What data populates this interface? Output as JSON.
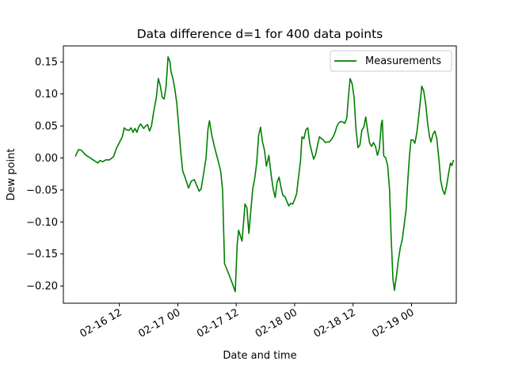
{
  "chart_data": {
    "type": "line",
    "title": "Data difference d=1 for 400 data points",
    "xlabel": "Date and time",
    "ylabel": "Dew point",
    "x_ticks": [
      {
        "label": "02-16 12",
        "hours": 12
      },
      {
        "label": "02-17 00",
        "hours": 24
      },
      {
        "label": "02-17 12",
        "hours": 36
      },
      {
        "label": "02-18 00",
        "hours": 48
      },
      {
        "label": "02-18 12",
        "hours": 60
      },
      {
        "label": "02-19 00",
        "hours": 72
      }
    ],
    "y_ticks": [
      0.15,
      0.1,
      0.05,
      0.0,
      -0.05,
      -0.1,
      -0.15,
      -0.2
    ],
    "y_tick_labels": [
      "0.15",
      "0.10",
      "0.05",
      "0.00",
      "−0.05",
      "−0.10",
      "−0.15",
      "−0.20"
    ],
    "xlim": [
      0.5,
      81.2
    ],
    "ylim": [
      -0.227,
      0.175
    ],
    "legend": "top-right",
    "series": [
      {
        "name": "Measurements",
        "color": "#008000",
        "points": [
          [
            3.0,
            0.003
          ],
          [
            3.6,
            0.013
          ],
          [
            4.2,
            0.012
          ],
          [
            5.0,
            0.005
          ],
          [
            6.0,
            0.0
          ],
          [
            7.0,
            -0.005
          ],
          [
            7.6,
            -0.008
          ],
          [
            8.0,
            -0.004
          ],
          [
            8.6,
            -0.006
          ],
          [
            9.2,
            -0.003
          ],
          [
            10.0,
            -0.003
          ],
          [
            10.8,
            0.002
          ],
          [
            11.4,
            0.015
          ],
          [
            12.0,
            0.024
          ],
          [
            12.6,
            0.033
          ],
          [
            13.0,
            0.047
          ],
          [
            13.4,
            0.044
          ],
          [
            14.0,
            0.043
          ],
          [
            14.4,
            0.047
          ],
          [
            14.8,
            0.04
          ],
          [
            15.2,
            0.046
          ],
          [
            15.6,
            0.04
          ],
          [
            16.0,
            0.049
          ],
          [
            16.4,
            0.053
          ],
          [
            17.0,
            0.046
          ],
          [
            17.4,
            0.05
          ],
          [
            17.8,
            0.052
          ],
          [
            18.2,
            0.042
          ],
          [
            18.6,
            0.05
          ],
          [
            19.0,
            0.07
          ],
          [
            19.6,
            0.095
          ],
          [
            20.0,
            0.124
          ],
          [
            20.4,
            0.113
          ],
          [
            20.8,
            0.095
          ],
          [
            21.2,
            0.092
          ],
          [
            21.6,
            0.112
          ],
          [
            22.0,
            0.158
          ],
          [
            22.4,
            0.15
          ],
          [
            22.6,
            0.135
          ],
          [
            23.0,
            0.124
          ],
          [
            23.4,
            0.107
          ],
          [
            23.8,
            0.085
          ],
          [
            24.2,
            0.048
          ],
          [
            24.6,
            0.01
          ],
          [
            25.0,
            -0.02
          ],
          [
            25.6,
            -0.033
          ],
          [
            26.2,
            -0.047
          ],
          [
            26.8,
            -0.036
          ],
          [
            27.4,
            -0.034
          ],
          [
            28.0,
            -0.045
          ],
          [
            28.4,
            -0.052
          ],
          [
            28.8,
            -0.048
          ],
          [
            29.4,
            -0.02
          ],
          [
            29.8,
            0.0
          ],
          [
            30.2,
            0.045
          ],
          [
            30.5,
            0.058
          ],
          [
            31.0,
            0.035
          ],
          [
            31.6,
            0.015
          ],
          [
            32.2,
            -0.002
          ],
          [
            32.8,
            -0.02
          ],
          [
            33.2,
            -0.05
          ],
          [
            33.6,
            -0.165
          ],
          [
            34.4,
            -0.18
          ],
          [
            35.2,
            -0.196
          ],
          [
            35.8,
            -0.209
          ],
          [
            36.2,
            -0.135
          ],
          [
            36.5,
            -0.113
          ],
          [
            37.2,
            -0.13
          ],
          [
            37.8,
            -0.072
          ],
          [
            38.2,
            -0.078
          ],
          [
            38.6,
            -0.118
          ],
          [
            39.0,
            -0.082
          ],
          [
            39.4,
            -0.048
          ],
          [
            39.8,
            -0.032
          ],
          [
            40.2,
            -0.008
          ],
          [
            40.6,
            0.035
          ],
          [
            41.0,
            0.048
          ],
          [
            41.4,
            0.025
          ],
          [
            41.8,
            0.012
          ],
          [
            42.2,
            -0.013
          ],
          [
            42.7,
            0.004
          ],
          [
            43.2,
            -0.028
          ],
          [
            43.6,
            -0.049
          ],
          [
            44.0,
            -0.062
          ],
          [
            44.4,
            -0.038
          ],
          [
            44.8,
            -0.03
          ],
          [
            45.2,
            -0.046
          ],
          [
            45.6,
            -0.059
          ],
          [
            46.0,
            -0.06
          ],
          [
            46.4,
            -0.068
          ],
          [
            46.8,
            -0.075
          ],
          [
            47.2,
            -0.071
          ],
          [
            47.6,
            -0.072
          ],
          [
            48.0,
            -0.065
          ],
          [
            48.4,
            -0.056
          ],
          [
            48.8,
            -0.03
          ],
          [
            49.2,
            -0.005
          ],
          [
            49.5,
            0.033
          ],
          [
            49.9,
            0.03
          ],
          [
            50.3,
            0.044
          ],
          [
            50.7,
            0.047
          ],
          [
            51.1,
            0.023
          ],
          [
            51.5,
            0.01
          ],
          [
            51.9,
            -0.002
          ],
          [
            52.3,
            0.005
          ],
          [
            52.7,
            0.02
          ],
          [
            53.1,
            0.033
          ],
          [
            53.5,
            0.03
          ],
          [
            53.9,
            0.028
          ],
          [
            54.3,
            0.024
          ],
          [
            54.7,
            0.025
          ],
          [
            55.1,
            0.025
          ],
          [
            55.5,
            0.028
          ],
          [
            55.9,
            0.033
          ],
          [
            56.3,
            0.04
          ],
          [
            56.7,
            0.05
          ],
          [
            57.1,
            0.055
          ],
          [
            57.5,
            0.057
          ],
          [
            57.9,
            0.056
          ],
          [
            58.3,
            0.054
          ],
          [
            58.7,
            0.062
          ],
          [
            59.1,
            0.1
          ],
          [
            59.4,
            0.124
          ],
          [
            59.8,
            0.116
          ],
          [
            60.2,
            0.095
          ],
          [
            60.6,
            0.045
          ],
          [
            61.0,
            0.016
          ],
          [
            61.4,
            0.02
          ],
          [
            61.8,
            0.043
          ],
          [
            62.2,
            0.048
          ],
          [
            62.6,
            0.064
          ],
          [
            63.0,
            0.042
          ],
          [
            63.4,
            0.023
          ],
          [
            63.8,
            0.018
          ],
          [
            64.2,
            0.024
          ],
          [
            64.6,
            0.018
          ],
          [
            65.0,
            0.004
          ],
          [
            65.4,
            0.015
          ],
          [
            65.8,
            0.053
          ],
          [
            66.0,
            0.059
          ],
          [
            66.3,
            0.003
          ],
          [
            66.7,
            0.0
          ],
          [
            67.1,
            -0.012
          ],
          [
            67.5,
            -0.05
          ],
          [
            67.8,
            -0.12
          ],
          [
            68.2,
            -0.19
          ],
          [
            68.5,
            -0.207
          ],
          [
            68.9,
            -0.185
          ],
          [
            69.3,
            -0.16
          ],
          [
            69.7,
            -0.14
          ],
          [
            70.1,
            -0.128
          ],
          [
            70.5,
            -0.104
          ],
          [
            70.9,
            -0.08
          ],
          [
            71.2,
            -0.04
          ],
          [
            71.6,
            0.005
          ],
          [
            71.9,
            0.028
          ],
          [
            72.3,
            0.028
          ],
          [
            72.7,
            0.023
          ],
          [
            73.1,
            0.04
          ],
          [
            73.5,
            0.066
          ],
          [
            73.9,
            0.095
          ],
          [
            74.1,
            0.112
          ],
          [
            74.5,
            0.105
          ],
          [
            74.9,
            0.085
          ],
          [
            75.3,
            0.055
          ],
          [
            75.7,
            0.033
          ],
          [
            76.0,
            0.025
          ],
          [
            76.4,
            0.037
          ],
          [
            76.8,
            0.042
          ],
          [
            77.2,
            0.03
          ],
          [
            77.6,
            0.0
          ],
          [
            78.0,
            -0.035
          ],
          [
            78.4,
            -0.05
          ],
          [
            78.8,
            -0.057
          ],
          [
            79.2,
            -0.044
          ],
          [
            79.6,
            -0.025
          ],
          [
            80.0,
            -0.008
          ],
          [
            80.3,
            -0.012
          ],
          [
            80.6,
            -0.004
          ]
        ]
      }
    ]
  }
}
